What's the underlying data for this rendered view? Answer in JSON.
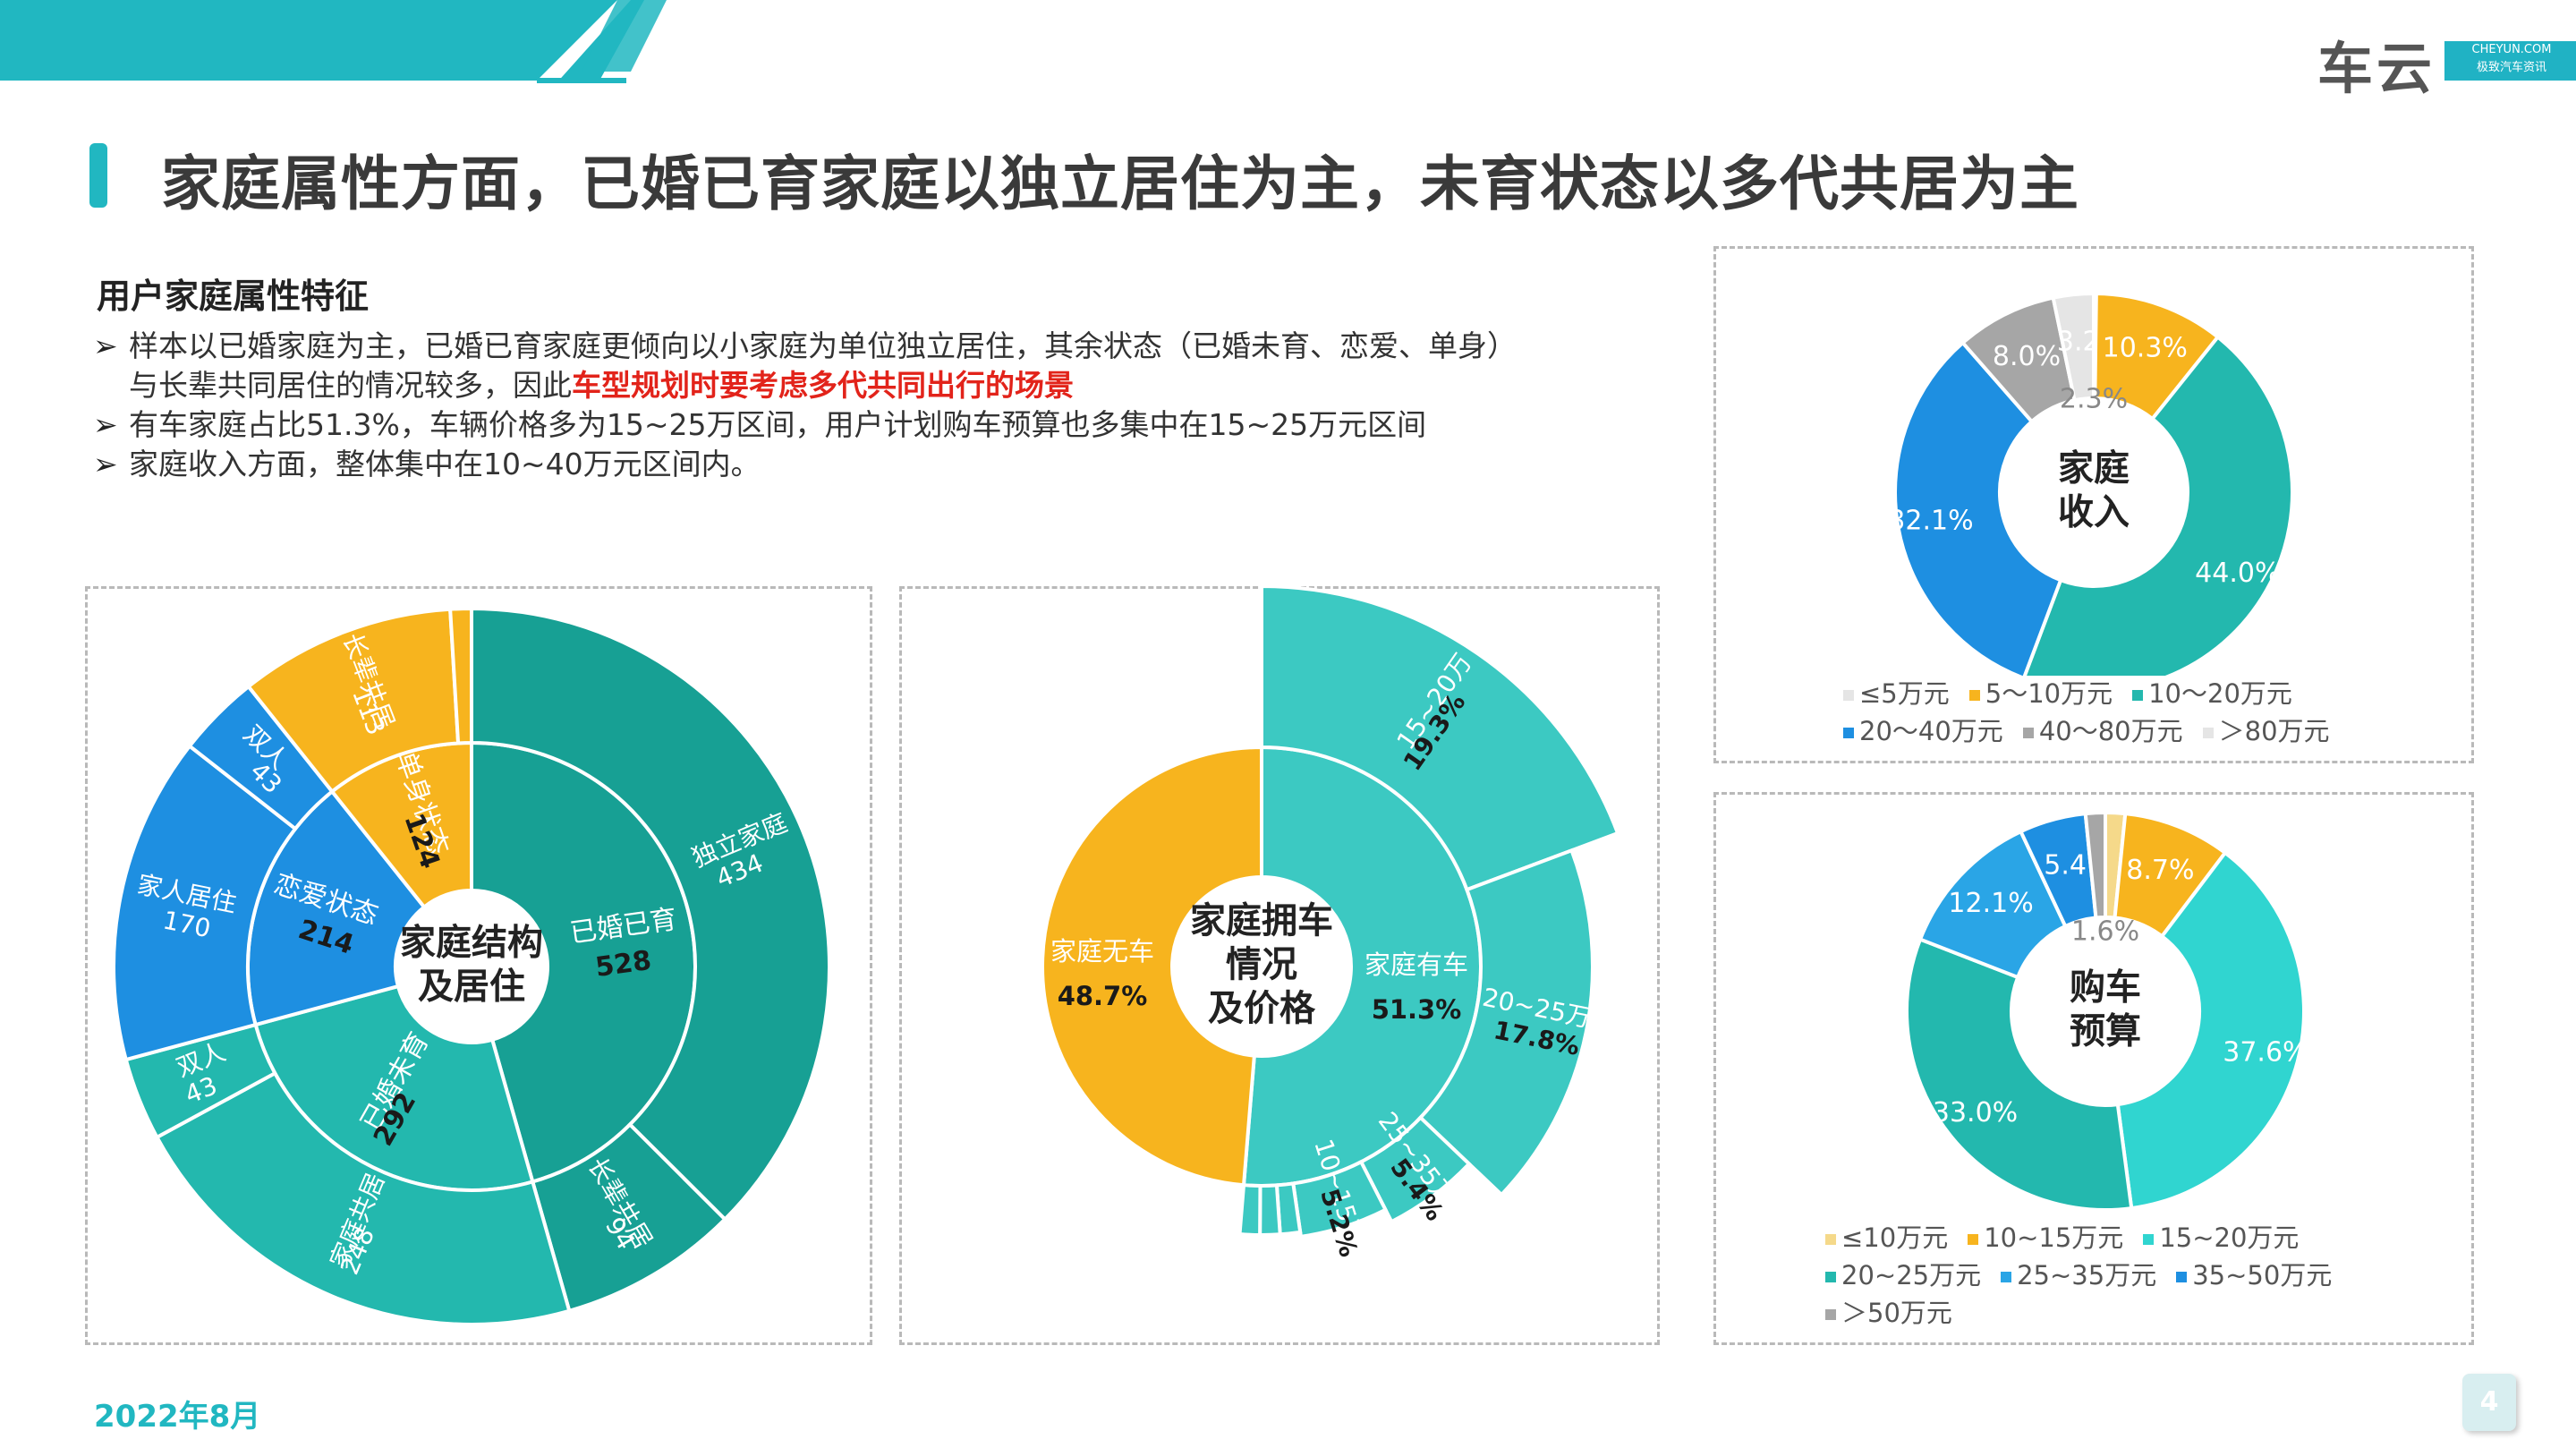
{
  "header": {
    "title": "家庭属性方面，已婚已育家庭以独立居住为主，未育状态以多代共居为主",
    "logo": {
      "name": "车云",
      "sub_top": "CHEYUN.COM",
      "sub_bottom": "极致汽车资讯"
    }
  },
  "intro": {
    "heading": "用户家庭属性特征",
    "arrow": "➢",
    "b1_part1": "样本以已婚家庭为主，已婚已育家庭更倾向以小家庭为单位独立居住，其余状态（已婚未育、恋爱、单身）",
    "b1_part2a": "与长辈共同居住的情况较多，因此",
    "b1_highlight": "车型规划时要考虑多代共同出行的场景",
    "b2": "有车家庭占比51.3%，车辆价格多为15~25万区间，用户计划购车预算也多集中在15~25万元区间",
    "b3": "家庭收入方面，整体集中在10~40万元区间内。"
  },
  "footer": {
    "date": "2022年8月",
    "page": "4"
  },
  "colors": {
    "teal_dark": "#17A094",
    "teal": "#23B8AE",
    "teal_light": "#3CC9C2",
    "cyan": "#30D5D0",
    "blue": "#1E8FE1",
    "blue_light": "#2AA5E6",
    "orange": "#F7B41E",
    "gray": "#A6A6A6",
    "pale": "#E5E5E5"
  },
  "chart_data": [
    {
      "type": "sunburst",
      "center_label": [
        "家庭结构",
        "及居住"
      ],
      "inner": [
        {
          "label": "已婚已育",
          "value": 528
        },
        {
          "label": "已婚未育",
          "value": 292
        },
        {
          "label": "恋爱状态",
          "value": 214
        },
        {
          "label": "单身状态",
          "value": 124
        }
      ],
      "outer": [
        {
          "parent": "已婚已育",
          "label": "独立家庭, 434",
          "value": 434
        },
        {
          "parent": "已婚已育",
          "label": "长辈共居, 94",
          "value": 94
        },
        {
          "parent": "已婚未育",
          "label": "家庭共居, 248",
          "value": 248
        },
        {
          "parent": "已婚未育",
          "label": "双人, 43",
          "value": 43
        },
        {
          "parent": "恋爱状态",
          "label": "家人居住, 170",
          "value": 170
        },
        {
          "parent": "恋爱状态",
          "label": "双人, 43",
          "value": 43
        },
        {
          "parent": "单身状态",
          "label": "长辈共居, 113",
          "value": 113
        },
        {
          "parent": "单身状态",
          "label": "",
          "value": 11
        }
      ]
    },
    {
      "type": "sunburst",
      "center_label": [
        "家庭拥车",
        "情况",
        "及价格"
      ],
      "inner": [
        {
          "label": "家庭有车",
          "value_label": "51.3%",
          "value": 51.3
        },
        {
          "label": "家庭无车",
          "value_label": "48.7%",
          "value": 48.7
        }
      ],
      "outer": [
        {
          "parent": "家庭有车",
          "label": "15~20万",
          "value_label": "19.3%",
          "value": 19.3
        },
        {
          "parent": "家庭有车",
          "label": "20~25万",
          "value_label": "17.8%",
          "value": 17.8
        },
        {
          "parent": "家庭有车",
          "label": "25~35万",
          "value_label": "5.4%",
          "value": 5.4
        },
        {
          "parent": "家庭有车",
          "label": "10~15万",
          "value_label": "5.2%",
          "value": 5.2
        },
        {
          "parent": "家庭有车",
          "label": "",
          "value": 1.2
        },
        {
          "parent": "家庭有车",
          "label": "",
          "value": 1.2
        },
        {
          "parent": "家庭有车",
          "label": "",
          "value": 1.2
        }
      ]
    },
    {
      "type": "donut",
      "center_label": [
        "家庭",
        "收入"
      ],
      "slices": [
        {
          "label": "≤5万元",
          "value": 0.2,
          "color": "#E5E5E5",
          "value_label": ""
        },
        {
          "label": "5～10万元",
          "value": 10.3,
          "color": "#F7B41E",
          "value_label": "10.3%"
        },
        {
          "label": "10～20万元",
          "value": 44.0,
          "color": "#23B8AE",
          "value_label": "44.0%"
        },
        {
          "label": "20～40万元",
          "value": 32.1,
          "color": "#1E8FE1",
          "value_label": "32.1%"
        },
        {
          "label": "40～80万元",
          "value": 8.0,
          "color": "#A6A6A6",
          "value_label": "8.0%"
        },
        {
          "label": "＞80万元",
          "value": 3.2,
          "color": "#E5E5E5",
          "value_label": "3.2"
        }
      ],
      "extra_label": "2.3%"
    },
    {
      "type": "donut",
      "center_label": [
        "购车",
        "预算"
      ],
      "slices": [
        {
          "label": "≤10万元",
          "value": 1.6,
          "color": "#F5D98A",
          "value_label": "1.6%"
        },
        {
          "label": "10~15万元",
          "value": 8.7,
          "color": "#F7B41E",
          "value_label": "8.7%"
        },
        {
          "label": "15~20万元",
          "value": 37.6,
          "color": "#30D5D0",
          "value_label": "37.6%"
        },
        {
          "label": "20~25万元",
          "value": 33.0,
          "color": "#23B8AE",
          "value_label": "33.0%"
        },
        {
          "label": "25~35万元",
          "value": 12.1,
          "color": "#2AA5E6",
          "value_label": "12.1%"
        },
        {
          "label": "35~50万元",
          "value": 5.4,
          "color": "#1E8FE1",
          "value_label": "5.4"
        },
        {
          "label": "＞50万元",
          "value": 1.6,
          "color": "#A6A6A6",
          "value_label": "1.6%"
        }
      ]
    }
  ]
}
